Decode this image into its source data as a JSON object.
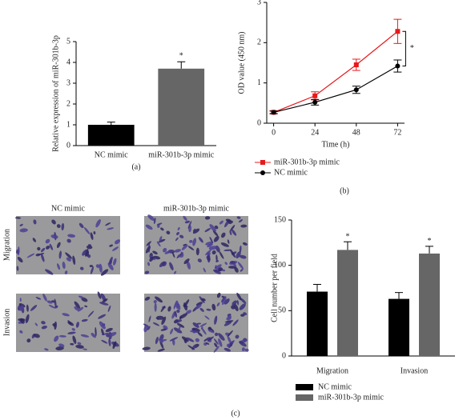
{
  "chart_data": [
    {
      "type": "bar",
      "categories": [
        "NC mimic",
        "miR-301b-3p mimic"
      ],
      "values": [
        1.0,
        3.7
      ],
      "errors": [
        0.13,
        0.33
      ],
      "colors": [
        "#000000",
        "#666666"
      ],
      "ylabel": "Relative expression of miR-301b-3p",
      "ylim": [
        0,
        5
      ],
      "yticks": [
        0,
        1,
        2,
        3,
        4,
        5
      ],
      "annotations": [
        null,
        "*"
      ],
      "panel_label": "(a)"
    },
    {
      "type": "line",
      "x": [
        0,
        24,
        48,
        72
      ],
      "xlim": [
        -4,
        76
      ],
      "xticks": [
        0,
        24,
        48,
        72
      ],
      "ylim": [
        0,
        3
      ],
      "yticks": [
        0,
        1,
        2,
        3
      ],
      "xlabel": "Time (h)",
      "ylabel": "OD value (450 nm)",
      "series": [
        {
          "name": "miR-301b-3p mimic",
          "color": "#e8191b",
          "marker": "square",
          "values": [
            0.27,
            0.68,
            1.45,
            2.28
          ],
          "errors": [
            0.04,
            0.1,
            0.14,
            0.3
          ]
        },
        {
          "name": "NC mimic",
          "color": "#000000",
          "marker": "circle",
          "values": [
            0.27,
            0.52,
            0.83,
            1.42
          ],
          "errors": [
            0.03,
            0.07,
            0.09,
            0.15
          ]
        }
      ],
      "annotation": "*",
      "panel_label": "(b)"
    },
    {
      "type": "grouped_bar",
      "categories": [
        "Migration",
        "Invasion"
      ],
      "ylabel": "Cell number per field",
      "ylim": [
        0,
        150
      ],
      "yticks": [
        0,
        50,
        100,
        150
      ],
      "series": [
        {
          "name": "NC mimic",
          "color": "#000000",
          "values": [
            71,
            63
          ],
          "errors": [
            8,
            7
          ]
        },
        {
          "name": "miR-301b-3p mimic",
          "color": "#666666",
          "values": [
            117,
            113
          ],
          "errors": [
            9,
            8
          ]
        }
      ],
      "annotations": [
        "*",
        "*"
      ],
      "panel_label": "(c)"
    }
  ],
  "image_grid": {
    "columns": [
      "NC mimic",
      "miR-301b-3p mimic"
    ],
    "rows": [
      "Migration",
      "Invasion"
    ]
  }
}
